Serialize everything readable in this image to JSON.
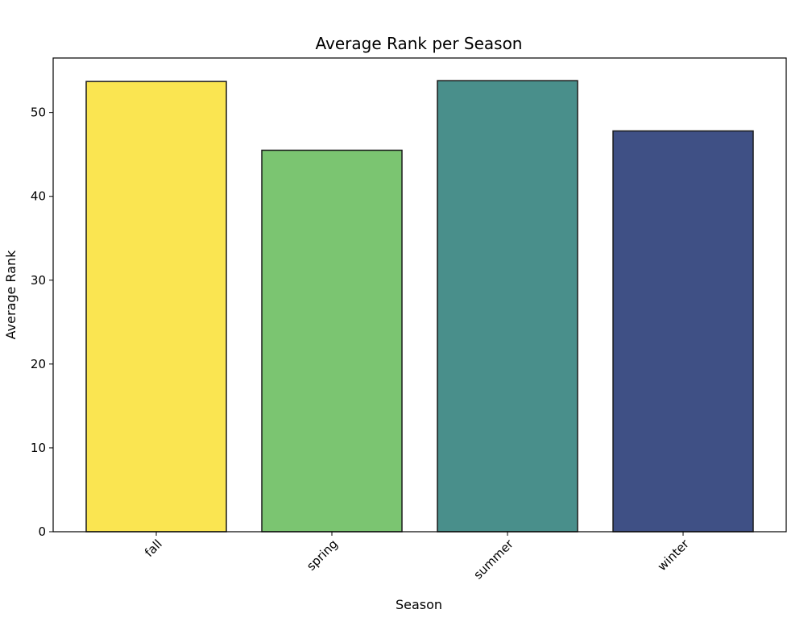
{
  "chart_data": {
    "type": "bar",
    "title": "Average Rank per Season",
    "xlabel": "Season",
    "ylabel": "Average Rank",
    "categories": [
      "fall",
      "spring",
      "summer",
      "winter"
    ],
    "values": [
      53.7,
      45.5,
      53.8,
      47.8
    ],
    "colors": [
      "#fae551",
      "#7bc571",
      "#498f8b",
      "#3f5085"
    ],
    "edge_color": "#1a1a1a",
    "ylim": [
      0,
      56.5
    ],
    "yticks": [
      0,
      10,
      20,
      30,
      40,
      50
    ],
    "xtick_rotation": -45,
    "grid": false,
    "legend": "none"
  }
}
